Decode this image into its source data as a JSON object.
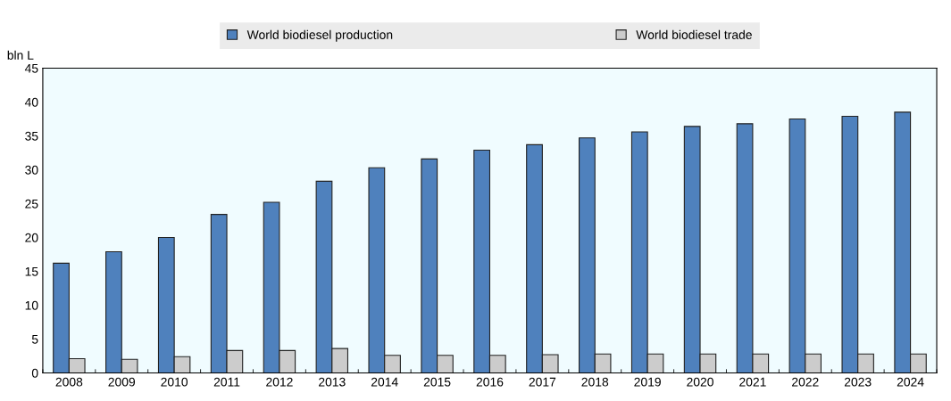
{
  "chart_data": {
    "type": "bar",
    "ylabel": "bln L",
    "categories": [
      "2008",
      "2009",
      "2010",
      "2011",
      "2012",
      "2013",
      "2014",
      "2015",
      "2016",
      "2017",
      "2018",
      "2019",
      "2020",
      "2021",
      "2022",
      "2023",
      "2024"
    ],
    "series": [
      {
        "name": "World biodiesel production",
        "color": "#4f81bd",
        "values": [
          16.2,
          17.9,
          20.0,
          23.4,
          25.2,
          28.3,
          30.3,
          31.6,
          32.9,
          33.7,
          34.7,
          35.6,
          36.4,
          36.8,
          37.5,
          37.9,
          38.5
        ]
      },
      {
        "name": "World biodiesel trade",
        "color": "#cccccc",
        "values": [
          2.1,
          2.0,
          2.4,
          3.3,
          3.3,
          3.6,
          2.6,
          2.6,
          2.6,
          2.7,
          2.8,
          2.8,
          2.8,
          2.8,
          2.8,
          2.8,
          2.8
        ]
      }
    ],
    "ylim": [
      0,
      45
    ],
    "yticks": [
      0,
      5,
      10,
      15,
      20,
      25,
      30,
      35,
      40,
      45
    ],
    "grid": false,
    "legend": "top"
  }
}
